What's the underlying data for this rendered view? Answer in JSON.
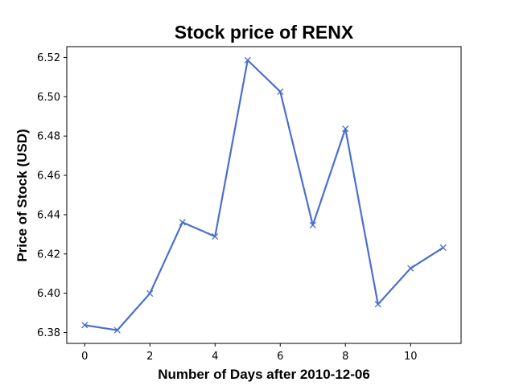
{
  "chart_data": {
    "type": "line",
    "title": "Stock price of RENX",
    "xlabel": "Number of Days after 2010-12-06",
    "ylabel": "Price of Stock (USD)",
    "xlim": [
      -0.55,
      11.55
    ],
    "ylim": [
      6.3745,
      6.5255
    ],
    "xticks": [
      0,
      2,
      4,
      6,
      8,
      10
    ],
    "xtick_labels": [
      "0",
      "2",
      "4",
      "6",
      "8",
      "10"
    ],
    "yticks": [
      6.38,
      6.4,
      6.42,
      6.44,
      6.46,
      6.48,
      6.5,
      6.52
    ],
    "ytick_labels": [
      "6.38",
      "6.40",
      "6.42",
      "6.44",
      "6.46",
      "6.48",
      "6.50",
      "6.52"
    ],
    "grid": false,
    "series": [
      {
        "color": "#4a6fcf",
        "marker": "x",
        "x": [
          0,
          1,
          2,
          3,
          4,
          5,
          6,
          7,
          8,
          9,
          10,
          11
        ],
        "y": [
          6.3838,
          6.3812,
          6.3999,
          6.4361,
          6.4289,
          6.5186,
          6.5026,
          6.4347,
          6.4837,
          6.3944,
          6.4127,
          6.4232
        ]
      }
    ]
  }
}
